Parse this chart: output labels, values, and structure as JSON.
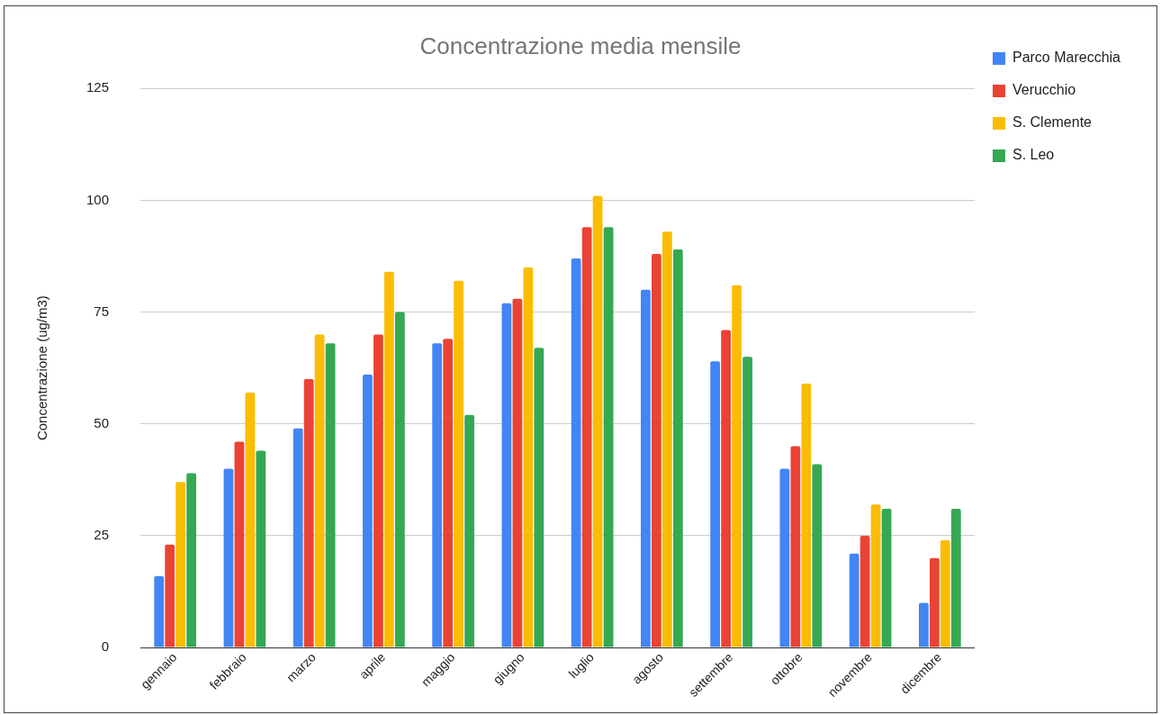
{
  "chart_data": {
    "type": "bar",
    "title": "Concentrazione media mensile",
    "ylabel": "Concentrazione (ug/m3)",
    "categories": [
      "gennaio",
      "febbraio",
      "marzo",
      "aprile",
      "maggio",
      "giugno",
      "luglio",
      "agosto",
      "settembre",
      "ottobre",
      "novembre",
      "dicembre"
    ],
    "series": [
      {
        "name": "Parco Marecchia",
        "color": "#4285f4",
        "values": [
          16,
          40,
          49,
          61,
          68,
          77,
          87,
          80,
          64,
          40,
          21,
          10
        ]
      },
      {
        "name": "Verucchio",
        "color": "#ea4335",
        "values": [
          23,
          46,
          60,
          70,
          69,
          78,
          94,
          88,
          71,
          45,
          25,
          20
        ]
      },
      {
        "name": "S. Clemente",
        "color": "#fbbc04",
        "values": [
          37,
          57,
          70,
          84,
          82,
          85,
          101,
          93,
          81,
          59,
          32,
          24
        ]
      },
      {
        "name": "S. Leo",
        "color": "#34a853",
        "values": [
          39,
          44,
          68,
          75,
          52,
          67,
          94,
          89,
          65,
          41,
          31,
          31
        ]
      }
    ],
    "ylim": [
      0,
      125
    ],
    "yticks": [
      0,
      25,
      50,
      75,
      100,
      125
    ],
    "grid": "y",
    "legend": "right"
  }
}
